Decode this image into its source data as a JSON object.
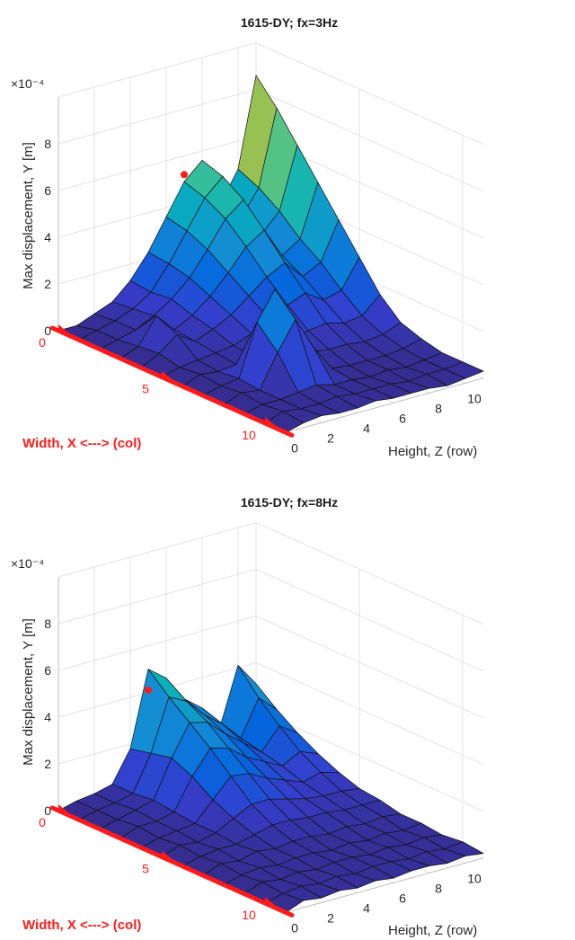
{
  "chart_data": [
    {
      "type": "surface",
      "title": "1615-DY; fx=3Hz",
      "ylabel": "Max displacement, Y [m]",
      "exponent_label": "×10⁻⁴",
      "x_axis_label": "Width, X <---> (col)",
      "z_axis_label": "Height, Z (row)",
      "x_ticks": [
        "0",
        "5",
        "10"
      ],
      "z_ticks": [
        "0",
        "2",
        "4",
        "6",
        "8",
        "10"
      ],
      "y_ticks": [
        "0",
        "2",
        "4",
        "6",
        "8"
      ],
      "ylim": [
        0,
        10
      ],
      "colormap": "parula",
      "peak_marker": {
        "x": 0,
        "z": 7,
        "value": 5.2
      },
      "grid": [
        [
          0.0,
          0.0,
          0.3,
          0.6,
          1.3,
          2.3,
          3.6,
          4.9,
          5.6,
          3.5,
          4.8,
          8.6
        ],
        [
          0.0,
          0.2,
          0.4,
          0.7,
          1.2,
          2.2,
          3.4,
          4.6,
          5.3,
          3.3,
          4.4,
          7.6
        ],
        [
          0.0,
          0.2,
          0.4,
          0.8,
          1.3,
          2.0,
          3.0,
          4.1,
          4.7,
          3.0,
          3.8,
          6.4
        ],
        [
          0.0,
          0.3,
          1.4,
          0.6,
          1.0,
          1.6,
          2.4,
          3.3,
          3.8,
          2.5,
          3.0,
          5.2
        ],
        [
          0.0,
          0.4,
          1.0,
          0.5,
          0.8,
          1.2,
          1.8,
          2.4,
          2.8,
          2.0,
          2.4,
          4.0
        ],
        [
          0.0,
          0.2,
          0.3,
          0.4,
          0.5,
          0.8,
          1.2,
          1.6,
          1.9,
          1.4,
          1.6,
          2.8
        ],
        [
          0.0,
          0.3,
          0.2,
          0.3,
          0.4,
          0.5,
          0.7,
          0.9,
          1.0,
          0.8,
          0.9,
          1.6
        ],
        [
          0.0,
          0.2,
          0.3,
          2.5,
          3.7,
          2.0,
          0.6,
          0.5,
          0.5,
          0.4,
          0.5,
          0.8
        ],
        [
          0.0,
          0.3,
          0.2,
          1.6,
          2.8,
          1.4,
          0.3,
          0.2,
          0.2,
          0.2,
          0.3,
          0.5
        ],
        [
          0.0,
          0.2,
          0.2,
          0.3,
          0.4,
          0.2,
          0.2,
          0.1,
          0.2,
          0.1,
          0.2,
          0.3
        ],
        [
          0.0,
          0.3,
          0.2,
          0.2,
          0.3,
          0.2,
          0.2,
          0.2,
          0.1,
          0.2,
          0.2,
          0.3
        ],
        [
          0.0,
          0.2,
          0.3,
          0.2,
          0.2,
          0.3,
          0.2,
          0.2,
          0.2,
          0.1,
          0.2,
          0.3
        ]
      ]
    },
    {
      "type": "surface",
      "title": "1615-DY; fx=8Hz",
      "ylabel": "Max displacement, Y [m]",
      "exponent_label": "×10⁻⁴",
      "x_axis_label": "Width, X <---> (col)",
      "z_axis_label": "Height, Z (row)",
      "x_ticks": [
        "0",
        "5",
        "10"
      ],
      "z_ticks": [
        "0",
        "2",
        "4",
        "6",
        "8",
        "10"
      ],
      "y_ticks": [
        "0",
        "2",
        "4",
        "6",
        "8"
      ],
      "ylim": [
        0,
        10
      ],
      "colormap": "parula",
      "peak_marker": {
        "x": 0,
        "z": 5,
        "value": 4.1
      },
      "grid": [
        [
          0.0,
          0.2,
          0.3,
          0.5,
          1.8,
          5.0,
          4.4,
          3.3,
          2.7,
          1.7,
          4.1,
          3.1
        ],
        [
          0.0,
          0.2,
          0.3,
          0.5,
          2.0,
          4.2,
          3.8,
          3.0,
          2.4,
          1.6,
          3.1,
          2.4
        ],
        [
          0.0,
          0.2,
          0.4,
          0.6,
          2.2,
          3.5,
          3.3,
          2.6,
          2.0,
          1.4,
          2.3,
          1.8
        ],
        [
          0.0,
          0.3,
          0.3,
          0.5,
          1.8,
          2.8,
          2.6,
          2.0,
          1.6,
          1.2,
          1.6,
          1.3
        ],
        [
          0.0,
          0.2,
          0.3,
          0.4,
          1.2,
          2.0,
          1.9,
          1.5,
          1.2,
          0.9,
          1.1,
          0.9
        ],
        [
          0.0,
          0.3,
          0.2,
          0.4,
          0.8,
          1.2,
          1.2,
          1.0,
          0.8,
          0.7,
          0.7,
          0.6
        ],
        [
          0.0,
          0.2,
          0.3,
          0.3,
          0.5,
          0.7,
          0.7,
          0.6,
          0.6,
          0.5,
          0.5,
          0.5
        ],
        [
          0.0,
          0.3,
          0.2,
          0.4,
          0.3,
          0.4,
          0.4,
          0.3,
          0.4,
          0.3,
          0.4,
          0.3
        ],
        [
          0.0,
          0.2,
          0.3,
          0.2,
          0.3,
          0.3,
          0.2,
          0.3,
          0.2,
          0.3,
          0.2,
          0.3
        ],
        [
          0.0,
          0.3,
          0.2,
          0.3,
          0.2,
          0.3,
          0.3,
          0.2,
          0.3,
          0.2,
          0.3,
          0.2
        ],
        [
          0.0,
          0.2,
          0.3,
          0.2,
          0.3,
          0.2,
          0.3,
          0.3,
          0.2,
          0.3,
          0.2,
          0.3
        ],
        [
          0.0,
          0.3,
          0.2,
          0.3,
          0.2,
          0.3,
          0.2,
          0.3,
          0.3,
          0.2,
          0.3,
          0.2
        ]
      ]
    }
  ]
}
